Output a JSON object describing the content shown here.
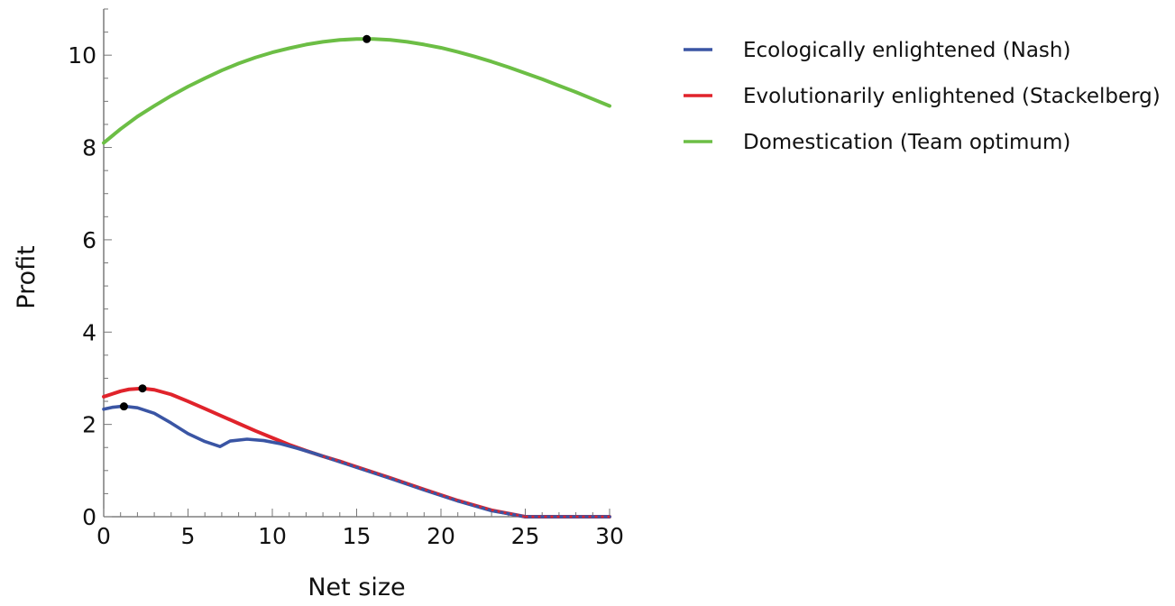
{
  "chart_data": {
    "type": "line",
    "title": "",
    "xlabel": "Net size",
    "ylabel": "Profit",
    "xlim": [
      0,
      30
    ],
    "ylim": [
      0,
      11
    ],
    "x_ticks": [
      0,
      5,
      10,
      15,
      20,
      25,
      30
    ],
    "x_tick_labels": [
      "0",
      "5",
      "10",
      "15",
      "20",
      "25",
      "30"
    ],
    "y_ticks": [
      0,
      2,
      4,
      6,
      8,
      10
    ],
    "y_tick_labels": [
      "0",
      "2",
      "4",
      "6",
      "8",
      "10"
    ],
    "grid": false,
    "legend_placement": "right",
    "series": [
      {
        "name": "Ecologically enlightened (Nash)",
        "color": "#3a55a4",
        "x": [
          0,
          0.5,
          1,
          1.3,
          2,
          3,
          4,
          5,
          6,
          6.9,
          7.5,
          8.5,
          9.5,
          10.5,
          11.5,
          12.5,
          13.5,
          15,
          17,
          19,
          21,
          23,
          25,
          27,
          30
        ],
        "y": [
          2.33,
          2.37,
          2.39,
          2.39,
          2.36,
          2.24,
          2.03,
          1.8,
          1.63,
          1.52,
          1.64,
          1.68,
          1.65,
          1.58,
          1.48,
          1.37,
          1.25,
          1.07,
          0.83,
          0.58,
          0.34,
          0.13,
          0,
          0,
          0
        ],
        "optimum": {
          "x": 1.2,
          "y": 2.39
        }
      },
      {
        "name": "Evolutionarily enlightened (Stackelberg)",
        "color": "#e0232b",
        "x": [
          0,
          0.5,
          1,
          1.5,
          2.3,
          3,
          4,
          5,
          6,
          7,
          8,
          9,
          10,
          11,
          12,
          13,
          14,
          15,
          17,
          19,
          21,
          23,
          25,
          27,
          30
        ],
        "y": [
          2.6,
          2.66,
          2.72,
          2.76,
          2.78,
          2.75,
          2.65,
          2.5,
          2.34,
          2.18,
          2.02,
          1.86,
          1.71,
          1.56,
          1.43,
          1.31,
          1.2,
          1.08,
          0.84,
          0.59,
          0.35,
          0.14,
          0,
          0,
          0
        ],
        "optimum": {
          "x": 2.3,
          "y": 2.78
        }
      },
      {
        "name": "Domestication (Team optimum)",
        "color": "#6cbe45",
        "x": [
          0,
          1,
          2,
          3,
          4,
          5,
          6,
          7,
          8,
          9,
          10,
          11,
          12,
          13,
          14,
          15,
          15.6,
          16,
          17,
          18,
          19,
          20,
          21,
          22,
          23,
          24,
          25,
          26,
          27,
          28,
          29,
          30
        ],
        "y": [
          8.1,
          8.4,
          8.67,
          8.9,
          9.12,
          9.32,
          9.5,
          9.67,
          9.82,
          9.95,
          10.06,
          10.15,
          10.23,
          10.29,
          10.33,
          10.35,
          10.35,
          10.35,
          10.33,
          10.29,
          10.23,
          10.16,
          10.07,
          9.97,
          9.86,
          9.74,
          9.61,
          9.48,
          9.34,
          9.2,
          9.05,
          8.9
        ],
        "optimum": {
          "x": 15.6,
          "y": 10.35
        }
      }
    ]
  }
}
